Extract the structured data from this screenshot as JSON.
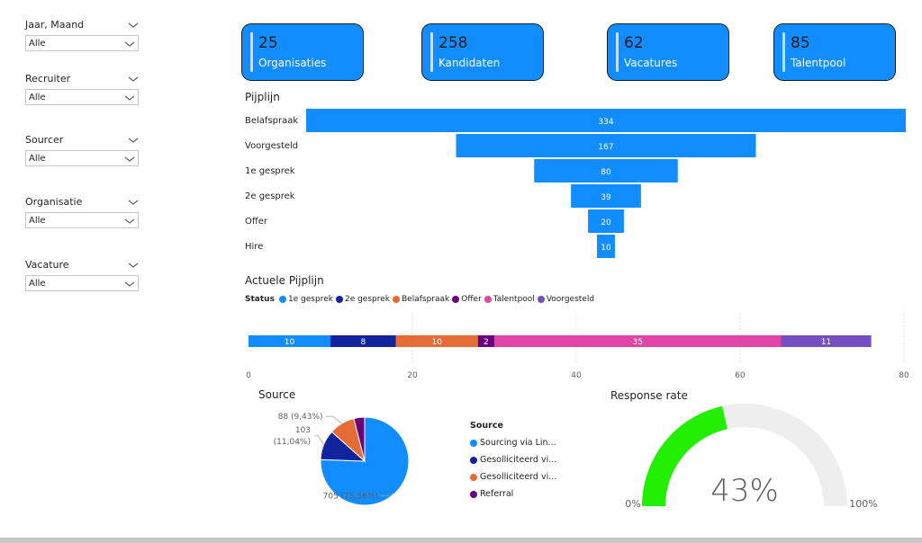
{
  "filters": [
    {
      "label": "Jaar, Maand",
      "value": "Alle"
    },
    {
      "label": "Recruiter",
      "value": "Alle"
    },
    {
      "label": "Sourcer",
      "value": "Alle"
    },
    {
      "label": "Organisatie",
      "value": "Alle"
    },
    {
      "label": "Vacature",
      "value": "Alle"
    }
  ],
  "cards": [
    {
      "value": "25",
      "label": "Organisaties"
    },
    {
      "value": "258",
      "label": "Kandidaten"
    },
    {
      "value": "62",
      "label": "Vacatures"
    },
    {
      "value": "85",
      "label": "Talentpool"
    }
  ],
  "colors": {
    "primary": "#118dff",
    "dark_blue": "#12239e",
    "orange": "#e66c37",
    "purple_dark": "#6b007b",
    "pink": "#e044a7",
    "violet": "#744ec2",
    "gauge_green": "#22ee00",
    "gauge_track": "#eeeeee"
  },
  "chart_data": [
    {
      "type": "bar",
      "subtype": "funnel",
      "title": "Pijplijn",
      "categories": [
        "Belafspraak",
        "Voorgesteld",
        "1e gesprek",
        "2e gesprek",
        "Offer",
        "Hire"
      ],
      "values": [
        334,
        167,
        80,
        39,
        20,
        10
      ]
    },
    {
      "type": "bar",
      "subtype": "stacked-horizontal",
      "title": "Actuele Pijplijn",
      "legend_title": "Status",
      "legend_placement": "top-left",
      "series": [
        {
          "name": "1e gesprek",
          "values": [
            10
          ],
          "color": "#118dff"
        },
        {
          "name": "2e gesprek",
          "values": [
            8
          ],
          "color": "#12239e"
        },
        {
          "name": "Belafspraak",
          "values": [
            10
          ],
          "color": "#e66c37"
        },
        {
          "name": "Offer",
          "values": [
            2
          ],
          "color": "#6b007b"
        },
        {
          "name": "Talentpool",
          "values": [
            35
          ],
          "color": "#e044a7"
        },
        {
          "name": "Voorgesteld",
          "values": [
            11
          ],
          "color": "#744ec2"
        }
      ],
      "xlim": [
        0,
        80
      ],
      "xticks": [
        "0",
        "20",
        "40",
        "60",
        "80"
      ],
      "grid": true
    },
    {
      "type": "pie",
      "title": "Source",
      "legend_title": "Source",
      "legend_placement": "right",
      "slices": [
        {
          "name": "Sourcing via Lin...",
          "value": 705,
          "label_text": "705 (75,56%)",
          "color": "#118dff"
        },
        {
          "name": "Gesolliciteerd vi...",
          "value": 103,
          "label_text": "103 (11,04%)",
          "color": "#12239e"
        },
        {
          "name": "Gesolliciteerd vi...",
          "value": 88,
          "label_text": "88 (9,43%)",
          "color": "#e66c37"
        },
        {
          "name": "Referral",
          "value": 37,
          "color": "#6b007b"
        }
      ]
    },
    {
      "type": "gauge",
      "title": "Response rate",
      "value": 0.43,
      "value_label": "43%",
      "min_label": "0%",
      "max_label": "100%"
    }
  ]
}
